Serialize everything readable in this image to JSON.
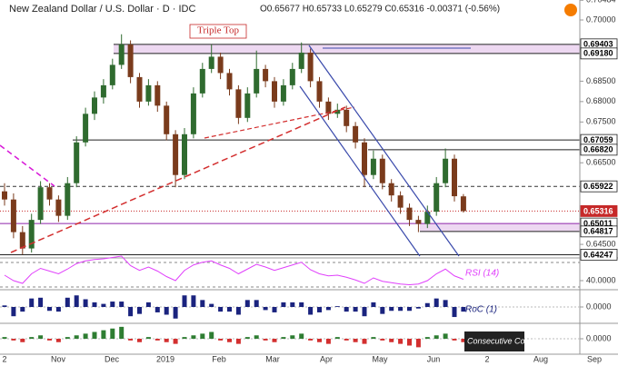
{
  "chart_data": {
    "type": "candlestick",
    "title": "New Zealand Dollar / U.S. Dollar · D · IDC",
    "subtitle": "O0.65677 H0.65733 L0.65279 C0.65316 -0.00371 (-0.56%)",
    "annotation": "Triple Top",
    "ylim": [
      0.6419,
      0.7049
    ],
    "yticks": [
      {
        "value": 0.70484,
        "label": "0.70484"
      },
      {
        "value": 0.7,
        "label": "0.70000"
      },
      {
        "value": 0.685,
        "label": "0.68500"
      },
      {
        "value": 0.68,
        "label": "0.68000"
      },
      {
        "value": 0.675,
        "label": "0.67500"
      },
      {
        "value": 0.665,
        "label": "0.66500"
      },
      {
        "value": 0.645,
        "label": "0.64500"
      }
    ],
    "levels": [
      {
        "value": 0.69403,
        "label": "0.69403",
        "style": "solid"
      },
      {
        "value": 0.6918,
        "label": "0.69180",
        "style": "solid"
      },
      {
        "value": 0.67059,
        "label": "0.67059",
        "style": "solid"
      },
      {
        "value": 0.6682,
        "label": "0.66820",
        "style": "solid"
      },
      {
        "value": 0.65922,
        "label": "0.65922",
        "style": "dashed"
      },
      {
        "value": 0.65316,
        "label": "0.65316",
        "style": "current"
      },
      {
        "value": 0.65011,
        "label": "0.65011",
        "style": "solid"
      },
      {
        "value": 0.64817,
        "label": "0.64817",
        "style": "solid"
      },
      {
        "value": 0.64247,
        "label": "0.64247",
        "style": "solid"
      }
    ],
    "up_color": "#2f6b2f",
    "down_color": "#7a3b1c",
    "candles": [
      [
        0.658,
        0.66,
        0.6545,
        0.656
      ],
      [
        0.656,
        0.6575,
        0.6465,
        0.648
      ],
      [
        0.648,
        0.6495,
        0.6425,
        0.644
      ],
      [
        0.644,
        0.6525,
        0.643,
        0.651
      ],
      [
        0.651,
        0.6605,
        0.65,
        0.659
      ],
      [
        0.659,
        0.66,
        0.6545,
        0.656
      ],
      [
        0.656,
        0.657,
        0.6505,
        0.652
      ],
      [
        0.652,
        0.6615,
        0.651,
        0.66
      ],
      [
        0.66,
        0.6715,
        0.659,
        0.67
      ],
      [
        0.67,
        0.6785,
        0.669,
        0.677
      ],
      [
        0.677,
        0.6825,
        0.6755,
        0.681
      ],
      [
        0.681,
        0.6855,
        0.6795,
        0.684
      ],
      [
        0.684,
        0.6905,
        0.683,
        0.689
      ],
      [
        0.689,
        0.6965,
        0.688,
        0.694
      ],
      [
        0.694,
        0.695,
        0.6845,
        0.686
      ],
      [
        0.686,
        0.687,
        0.6785,
        0.68
      ],
      [
        0.68,
        0.6855,
        0.679,
        0.684
      ],
      [
        0.684,
        0.685,
        0.6775,
        0.679
      ],
      [
        0.679,
        0.68,
        0.6705,
        0.672
      ],
      [
        0.672,
        0.673,
        0.659,
        0.662
      ],
      [
        0.662,
        0.6735,
        0.661,
        0.672
      ],
      [
        0.672,
        0.6835,
        0.671,
        0.682
      ],
      [
        0.682,
        0.6895,
        0.681,
        0.688
      ],
      [
        0.688,
        0.694,
        0.687,
        0.691
      ],
      [
        0.691,
        0.692,
        0.6855,
        0.687
      ],
      [
        0.687,
        0.688,
        0.6815,
        0.683
      ],
      [
        0.683,
        0.684,
        0.6745,
        0.676
      ],
      [
        0.676,
        0.6835,
        0.675,
        0.682
      ],
      [
        0.682,
        0.6925,
        0.681,
        0.688
      ],
      [
        0.688,
        0.689,
        0.6835,
        0.685
      ],
      [
        0.685,
        0.686,
        0.6785,
        0.68
      ],
      [
        0.68,
        0.6855,
        0.679,
        0.684
      ],
      [
        0.684,
        0.6895,
        0.683,
        0.688
      ],
      [
        0.688,
        0.6945,
        0.687,
        0.692
      ],
      [
        0.692,
        0.693,
        0.6835,
        0.685
      ],
      [
        0.685,
        0.686,
        0.6785,
        0.68
      ],
      [
        0.68,
        0.681,
        0.6755,
        0.677
      ],
      [
        0.677,
        0.6795,
        0.676,
        0.678
      ],
      [
        0.678,
        0.679,
        0.6725,
        0.674
      ],
      [
        0.674,
        0.675,
        0.6685,
        0.67
      ],
      [
        0.67,
        0.671,
        0.659,
        0.662
      ],
      [
        0.662,
        0.668,
        0.661,
        0.666
      ],
      [
        0.666,
        0.667,
        0.6585,
        0.66
      ],
      [
        0.66,
        0.661,
        0.6555,
        0.657
      ],
      [
        0.657,
        0.658,
        0.6525,
        0.654
      ],
      [
        0.654,
        0.655,
        0.6495,
        0.651
      ],
      [
        0.651,
        0.652,
        0.648,
        0.65
      ],
      [
        0.65,
        0.6545,
        0.649,
        0.653
      ],
      [
        0.653,
        0.6615,
        0.652,
        0.66
      ],
      [
        0.66,
        0.6685,
        0.659,
        0.666
      ],
      [
        0.666,
        0.667,
        0.6555,
        0.6568
      ],
      [
        0.65677,
        0.65733,
        0.65279,
        0.65316
      ]
    ],
    "x_labels": [
      "2",
      "Nov",
      "Dec",
      "2019",
      "Feb",
      "Mar",
      "Apr",
      "May",
      "Jun",
      "2",
      "Aug",
      "Sep"
    ],
    "rsi": {
      "name": "RSI (14)",
      "color": "#e040fb",
      "ylim": [
        28,
        72
      ],
      "yticks": [
        {
          "value": 40,
          "label": "40.0000"
        }
      ],
      "values": [
        48,
        40,
        36,
        50,
        58,
        54,
        50,
        57,
        65,
        69,
        71,
        72,
        74,
        76,
        62,
        55,
        60,
        54,
        46,
        40,
        55,
        63,
        67,
        69,
        63,
        58,
        50,
        57,
        64,
        60,
        55,
        59,
        63,
        67,
        56,
        50,
        47,
        48,
        45,
        41,
        36,
        44,
        39,
        37,
        35,
        34,
        35,
        40,
        50,
        57,
        47,
        42
      ]
    },
    "roc": {
      "name": "RoC (1)",
      "color": "#1a237e",
      "ylim": [
        -2,
        2
      ],
      "yticks": [
        {
          "value": 0,
          "label": "0.0000"
        }
      ],
      "values": [
        0.2,
        -1.2,
        -0.6,
        1.1,
        1.2,
        -0.5,
        -0.6,
        1.2,
        1.5,
        1.0,
        0.6,
        0.4,
        0.7,
        0.7,
        -1.2,
        -0.9,
        0.6,
        -0.7,
        -1.0,
        -1.5,
        1.5,
        1.5,
        0.9,
        0.4,
        -0.6,
        -0.6,
        -1.0,
        0.9,
        0.9,
        -0.4,
        -0.7,
        0.6,
        0.6,
        0.6,
        -1.0,
        -0.7,
        -0.4,
        0.1,
        -0.6,
        -0.6,
        -1.2,
        0.6,
        -0.9,
        -0.5,
        -0.5,
        -0.5,
        -0.2,
        0.5,
        1.1,
        0.9,
        -1.3,
        -0.6
      ]
    },
    "consecutive": {
      "name": "Consecutive Count",
      "up_color": "#2e7d32",
      "down_color": "#d32f2f",
      "ylim": [
        -8,
        8
      ],
      "yticks": [
        {
          "value": 0,
          "label": "0.0000"
        }
      ],
      "values": [
        1,
        -1,
        -2,
        1,
        2,
        -1,
        -2,
        1,
        2,
        3,
        4,
        5,
        6,
        7,
        -1,
        -2,
        1,
        -1,
        -2,
        -3,
        1,
        2,
        3,
        4,
        -1,
        -2,
        -3,
        1,
        2,
        -1,
        -2,
        1,
        2,
        3,
        -1,
        -2,
        -3,
        1,
        -1,
        -2,
        -3,
        1,
        -1,
        -2,
        -3,
        -4,
        -5,
        1,
        2,
        3,
        -1,
        -2
      ]
    }
  }
}
